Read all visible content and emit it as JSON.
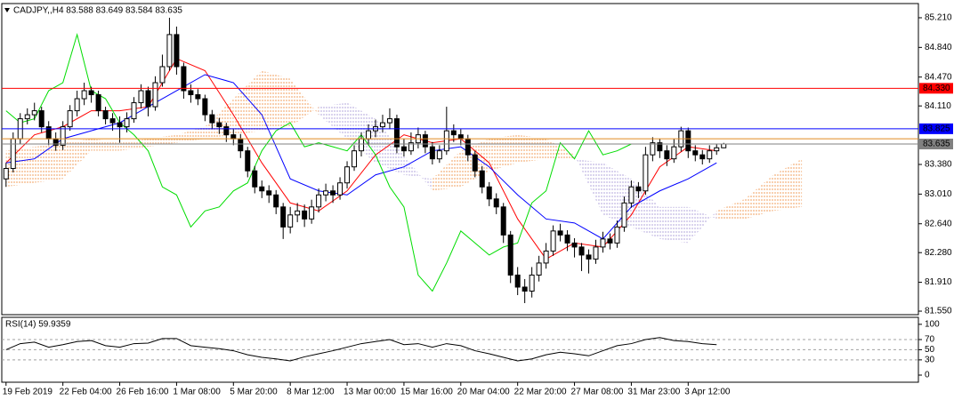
{
  "chart_data": [
    {
      "type": "candlestick",
      "title": "CADJPY,,H4  83.588 83.649 83.584 83.635",
      "open": [
        83.2,
        83.33,
        83.7,
        83.95,
        84.0,
        84.05,
        83.85,
        83.7,
        83.62,
        83.85,
        84.05,
        84.2,
        84.3,
        84.25,
        84.05,
        83.95,
        83.9,
        83.85,
        83.95,
        84.15,
        84.3,
        84.1,
        84.4,
        84.6,
        85.0,
        84.6,
        84.3,
        84.25,
        84.2,
        84.0,
        83.9,
        83.85,
        83.75,
        83.7,
        83.55,
        83.3,
        83.1,
        83.05,
        83.0,
        82.85,
        82.6,
        82.75,
        82.8,
        82.7,
        82.85,
        83.0,
        83.05,
        83.0,
        83.15,
        83.35,
        83.55,
        83.7,
        83.8,
        83.85,
        83.9,
        83.95,
        83.6,
        83.55,
        83.65,
        83.75,
        83.6,
        83.45,
        83.55,
        83.8,
        83.75,
        83.7,
        83.5,
        83.3,
        83.1,
        82.95,
        82.85,
        82.5,
        82.0,
        81.85,
        81.8,
        82.0,
        82.15,
        82.3,
        82.55,
        82.5,
        82.4,
        82.35,
        82.25,
        82.2,
        82.35,
        82.45,
        82.4,
        82.6,
        82.9,
        83.1,
        83.05,
        83.5,
        83.65,
        83.55,
        83.45,
        83.6,
        83.8,
        83.55,
        83.5,
        83.45,
        83.55,
        83.588
      ],
      "high": [
        83.4,
        83.78,
        84.02,
        84.08,
        84.15,
        84.1,
        83.92,
        83.78,
        83.92,
        84.12,
        84.3,
        84.4,
        84.35,
        84.3,
        84.1,
        84.02,
        83.98,
        84.03,
        84.22,
        84.38,
        84.35,
        84.48,
        84.75,
        85.21,
        85.1,
        84.65,
        84.38,
        84.32,
        84.25,
        84.06,
        83.96,
        83.9,
        83.82,
        83.76,
        83.6,
        83.36,
        83.18,
        83.12,
        83.06,
        82.9,
        82.85,
        82.9,
        82.88,
        82.94,
        83.08,
        83.14,
        83.12,
        83.22,
        83.42,
        83.62,
        83.78,
        83.88,
        83.94,
        84.0,
        84.08,
        84.0,
        83.7,
        83.78,
        83.84,
        83.8,
        83.66,
        83.62,
        84.1,
        83.88,
        83.82,
        83.75,
        83.55,
        83.36,
        83.16,
        83.02,
        82.9,
        82.55,
        82.1,
        81.95,
        82.1,
        82.24,
        82.4,
        82.62,
        82.64,
        82.56,
        82.46,
        82.4,
        82.32,
        82.44,
        82.54,
        82.52,
        82.68,
        82.98,
        83.18,
        83.16,
        83.6,
        83.72,
        83.7,
        83.62,
        83.7,
        83.85,
        83.84,
        83.62,
        83.56,
        83.62,
        83.64,
        83.649
      ],
      "low": [
        83.1,
        83.28,
        83.64,
        83.88,
        83.93,
        83.78,
        83.62,
        83.55,
        83.56,
        83.8,
        83.98,
        84.12,
        84.15,
        83.98,
        83.88,
        83.8,
        83.65,
        83.78,
        83.9,
        84.08,
        83.98,
        84.05,
        84.35,
        84.55,
        84.5,
        84.2,
        84.15,
        84.12,
        83.92,
        83.82,
        83.76,
        83.66,
        83.62,
        83.46,
        83.22,
        83.02,
        82.96,
        82.9,
        82.76,
        82.45,
        82.52,
        82.66,
        82.6,
        82.64,
        82.78,
        82.92,
        82.9,
        82.94,
        83.08,
        83.3,
        83.48,
        83.62,
        83.72,
        83.78,
        83.82,
        83.52,
        83.48,
        83.5,
        83.58,
        83.52,
        83.38,
        83.4,
        83.5,
        83.66,
        83.62,
        83.42,
        83.22,
        83.02,
        82.86,
        82.76,
        82.4,
        81.9,
        81.75,
        81.65,
        81.72,
        81.92,
        82.08,
        82.24,
        82.42,
        82.3,
        82.22,
        82.05,
        82.02,
        82.14,
        82.28,
        82.32,
        82.34,
        82.54,
        82.84,
        82.96,
        83.0,
        83.42,
        83.46,
        83.36,
        83.4,
        83.54,
        83.46,
        83.42,
        83.38,
        83.4,
        83.5,
        83.584
      ],
      "close": [
        83.33,
        83.7,
        83.95,
        84.0,
        84.05,
        83.85,
        83.7,
        83.62,
        83.85,
        84.05,
        84.2,
        84.3,
        84.25,
        84.05,
        83.95,
        83.9,
        83.85,
        83.95,
        84.15,
        84.3,
        84.1,
        84.4,
        84.6,
        85.0,
        84.6,
        84.3,
        84.25,
        84.2,
        84.0,
        83.9,
        83.85,
        83.75,
        83.7,
        83.55,
        83.3,
        83.1,
        83.05,
        83.0,
        82.85,
        82.6,
        82.75,
        82.8,
        82.7,
        82.85,
        83.0,
        83.05,
        83.0,
        83.15,
        83.35,
        83.55,
        83.7,
        83.8,
        83.85,
        83.9,
        83.95,
        83.6,
        83.55,
        83.65,
        83.75,
        83.6,
        83.45,
        83.55,
        83.8,
        83.75,
        83.7,
        83.5,
        83.3,
        83.1,
        82.95,
        82.85,
        82.5,
        82.0,
        81.85,
        81.8,
        82.0,
        82.15,
        82.3,
        82.55,
        82.5,
        82.4,
        82.35,
        82.25,
        82.2,
        82.35,
        82.45,
        82.4,
        82.6,
        82.9,
        83.1,
        83.05,
        83.5,
        83.65,
        83.55,
        83.45,
        83.6,
        83.8,
        83.55,
        83.5,
        83.45,
        83.55,
        83.588,
        83.635
      ],
      "up_color": "#ffffff",
      "down_color": "#000000",
      "wick_color": "#000000",
      "xlim": [
        -0.6,
        128.4
      ],
      "xticks": [
        {
          "value": 0,
          "label": "19 Feb 2019"
        },
        {
          "value": 8,
          "label": "22 Feb 04:00"
        },
        {
          "value": 16,
          "label": "26 Feb 16:00"
        },
        {
          "value": 24,
          "label": "1 Mar 08:00"
        },
        {
          "value": 32,
          "label": "5 Mar 20:00"
        },
        {
          "value": 40,
          "label": "8 Mar 12:00"
        },
        {
          "value": 48,
          "label": "13 Mar 00:00"
        },
        {
          "value": 56,
          "label": "15 Mar 16:00"
        },
        {
          "value": 64,
          "label": "20 Mar 04:00"
        },
        {
          "value": 72,
          "label": "22 Mar 20:00"
        },
        {
          "value": 80,
          "label": "27 Mar 08:00"
        },
        {
          "value": 88,
          "label": "31 Mar 23:00"
        },
        {
          "value": 96,
          "label": "3 Apr 12:00"
        }
      ],
      "ylim": [
        81.506,
        85.376
      ],
      "yticks": [
        {
          "value": 85.21,
          "label": "85.210"
        },
        {
          "value": 84.84,
          "label": "84.840"
        },
        {
          "value": 84.47,
          "label": "84.470"
        },
        {
          "value": 84.11,
          "label": "84.110"
        },
        {
          "value": 83.38,
          "label": "83.380"
        },
        {
          "value": 83.01,
          "label": "83.010"
        },
        {
          "value": 82.64,
          "label": "82.640"
        },
        {
          "value": 82.28,
          "label": "82.280"
        },
        {
          "value": 81.91,
          "label": "81.910"
        },
        {
          "value": 81.55,
          "label": "81.550"
        }
      ],
      "lines": [
        {
          "color": "#ff0000",
          "x": [
            0,
            4,
            8,
            12,
            16,
            20,
            24,
            28,
            32,
            36,
            40,
            44,
            48,
            52,
            56,
            60,
            64,
            68,
            72,
            76,
            80,
            84,
            88,
            92,
            96,
            100
          ],
          "values": [
            83.4,
            83.75,
            83.85,
            84.05,
            84.05,
            84.1,
            84.7,
            84.55,
            84.0,
            83.4,
            82.9,
            82.8,
            83.05,
            83.5,
            83.75,
            83.65,
            83.7,
            83.4,
            82.7,
            82.2,
            82.4,
            82.35,
            82.75,
            83.35,
            83.6,
            83.55
          ]
        },
        {
          "color": "#0000ff",
          "x": [
            0,
            4,
            8,
            12,
            16,
            20,
            24,
            28,
            32,
            36,
            40,
            44,
            48,
            52,
            56,
            60,
            64,
            68,
            72,
            76,
            80,
            84,
            88,
            92,
            96,
            100
          ],
          "values": [
            83.4,
            83.45,
            83.7,
            83.8,
            83.9,
            84.1,
            84.3,
            84.5,
            84.4,
            84.0,
            83.2,
            83.05,
            83.0,
            83.25,
            83.35,
            83.55,
            83.6,
            83.35,
            83.0,
            82.7,
            82.65,
            82.45,
            82.85,
            83.05,
            83.2,
            83.4
          ]
        },
        {
          "color": "#00dd00",
          "x": [
            0,
            2,
            4,
            6,
            8,
            10,
            12,
            14,
            16,
            18,
            20,
            22,
            24,
            26,
            28,
            30,
            32,
            34,
            36,
            38,
            40,
            42,
            44,
            46,
            48,
            50,
            52,
            54,
            56,
            58,
            60,
            62,
            64,
            66,
            68,
            70,
            72,
            74,
            76,
            78,
            80,
            82,
            84,
            86,
            88
          ],
          "values": [
            84.05,
            83.9,
            83.95,
            84.3,
            84.4,
            85.0,
            84.3,
            84.2,
            83.9,
            83.75,
            83.55,
            83.1,
            83.0,
            82.6,
            82.8,
            82.85,
            83.05,
            83.15,
            83.55,
            83.8,
            83.9,
            83.6,
            83.65,
            83.6,
            83.55,
            83.75,
            83.5,
            83.1,
            82.85,
            82.0,
            81.8,
            82.15,
            82.55,
            82.4,
            82.25,
            82.35,
            82.4,
            82.9,
            83.05,
            83.65,
            83.45,
            83.8,
            83.5,
            83.55,
            83.635
          ]
        }
      ],
      "cloud": {
        "x": [
          0,
          4,
          8,
          12,
          16,
          20,
          24,
          28,
          32,
          36,
          40,
          44,
          48,
          52,
          56,
          60,
          64,
          68,
          72,
          76,
          80,
          84,
          88,
          92,
          96,
          100,
          104,
          108,
          112
        ],
        "span_a": [
          83.55,
          83.6,
          83.65,
          83.7,
          83.65,
          83.7,
          83.75,
          83.85,
          84.2,
          84.55,
          84.45,
          84.0,
          83.7,
          83.4,
          83.25,
          83.2,
          83.55,
          83.7,
          83.75,
          83.7,
          83.5,
          82.75,
          82.6,
          82.45,
          82.4,
          82.8,
          82.95,
          83.25,
          83.45
        ],
        "span_b": [
          83.1,
          83.15,
          83.2,
          83.55,
          83.55,
          83.6,
          83.65,
          83.7,
          83.75,
          83.8,
          83.85,
          84.1,
          84.15,
          83.95,
          83.5,
          83.05,
          83.1,
          83.3,
          83.4,
          83.45,
          83.45,
          83.4,
          83.2,
          82.85,
          82.85,
          82.7,
          82.7,
          82.8,
          82.85
        ],
        "up_color": "#f0a060",
        "down_color": "#b4a8dc"
      },
      "hlines": [
        {
          "value": 84.33,
          "label": "84.330",
          "color": "#ff0000"
        },
        {
          "value": 83.825,
          "label": "83.825",
          "color": "#0000ff"
        },
        {
          "value": 83.7,
          "color": "#e08a20"
        },
        {
          "value": 83.635,
          "label": "83.635",
          "color": "#808080"
        }
      ]
    },
    {
      "type": "line",
      "title": "RSI(14) 59.9359",
      "color": "#000000",
      "x": [
        0,
        2,
        4,
        6,
        8,
        10,
        12,
        14,
        16,
        18,
        20,
        22,
        24,
        26,
        28,
        30,
        32,
        34,
        36,
        38,
        40,
        42,
        44,
        46,
        48,
        50,
        52,
        54,
        56,
        58,
        60,
        62,
        64,
        66,
        68,
        70,
        72,
        74,
        76,
        78,
        80,
        82,
        84,
        86,
        88,
        90,
        92,
        94,
        96,
        98,
        100
      ],
      "values": [
        50,
        62,
        65,
        55,
        60,
        66,
        68,
        58,
        55,
        62,
        63,
        72,
        72,
        58,
        55,
        52,
        48,
        40,
        35,
        32,
        28,
        36,
        42,
        48,
        55,
        62,
        66,
        70,
        60,
        62,
        55,
        62,
        58,
        48,
        42,
        35,
        28,
        32,
        40,
        45,
        42,
        38,
        48,
        58,
        62,
        70,
        74,
        68,
        66,
        62,
        60
      ],
      "ylim": [
        -14,
        112
      ],
      "yticks": [
        100,
        70,
        50,
        30,
        0
      ],
      "levels": [
        70,
        50,
        30
      ]
    }
  ]
}
